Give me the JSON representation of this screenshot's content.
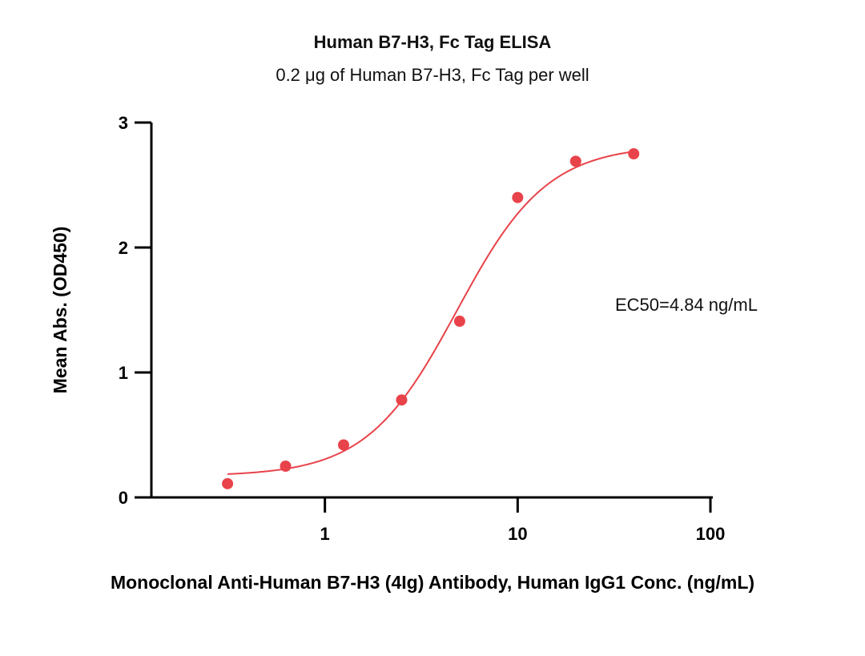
{
  "chart_data": {
    "type": "scatter",
    "title": "Human B7-H3, Fc Tag ELISA",
    "subtitle": "0.2 μg of Human B7-H3, Fc Tag per well",
    "xlabel": "Monoclonal Anti-Human B7-H3 (4Ig) Antibody, Human IgG1 Conc. (ng/mL)",
    "ylabel": "Mean Abs. (OD450)",
    "x_scale": "log",
    "xlim": [
      0.1,
      100
    ],
    "ylim": [
      0,
      3
    ],
    "x_ticks": [
      {
        "value": 1,
        "label": "1"
      },
      {
        "value": 10,
        "label": "10"
      },
      {
        "value": 100,
        "label": "100"
      }
    ],
    "y_ticks": [
      {
        "value": 0,
        "label": "0"
      },
      {
        "value": 1,
        "label": "1"
      },
      {
        "value": 2,
        "label": "2"
      },
      {
        "value": 3,
        "label": "3"
      }
    ],
    "grid": false,
    "color": "#e8434a",
    "points": [
      {
        "x": 0.3125,
        "y": 0.11
      },
      {
        "x": 0.625,
        "y": 0.25
      },
      {
        "x": 1.25,
        "y": 0.42
      },
      {
        "x": 2.5,
        "y": 0.78
      },
      {
        "x": 5,
        "y": 1.41
      },
      {
        "x": 10,
        "y": 2.4
      },
      {
        "x": 20,
        "y": 2.69
      },
      {
        "x": 40,
        "y": 2.75
      }
    ],
    "fit": {
      "model": "4PL",
      "bottom": 0.17,
      "top": 2.82,
      "ec50": 4.84,
      "hill": 1.85,
      "x_range": [
        0.3125,
        40
      ]
    },
    "annotation": "EC50=4.84 ng/mL"
  }
}
